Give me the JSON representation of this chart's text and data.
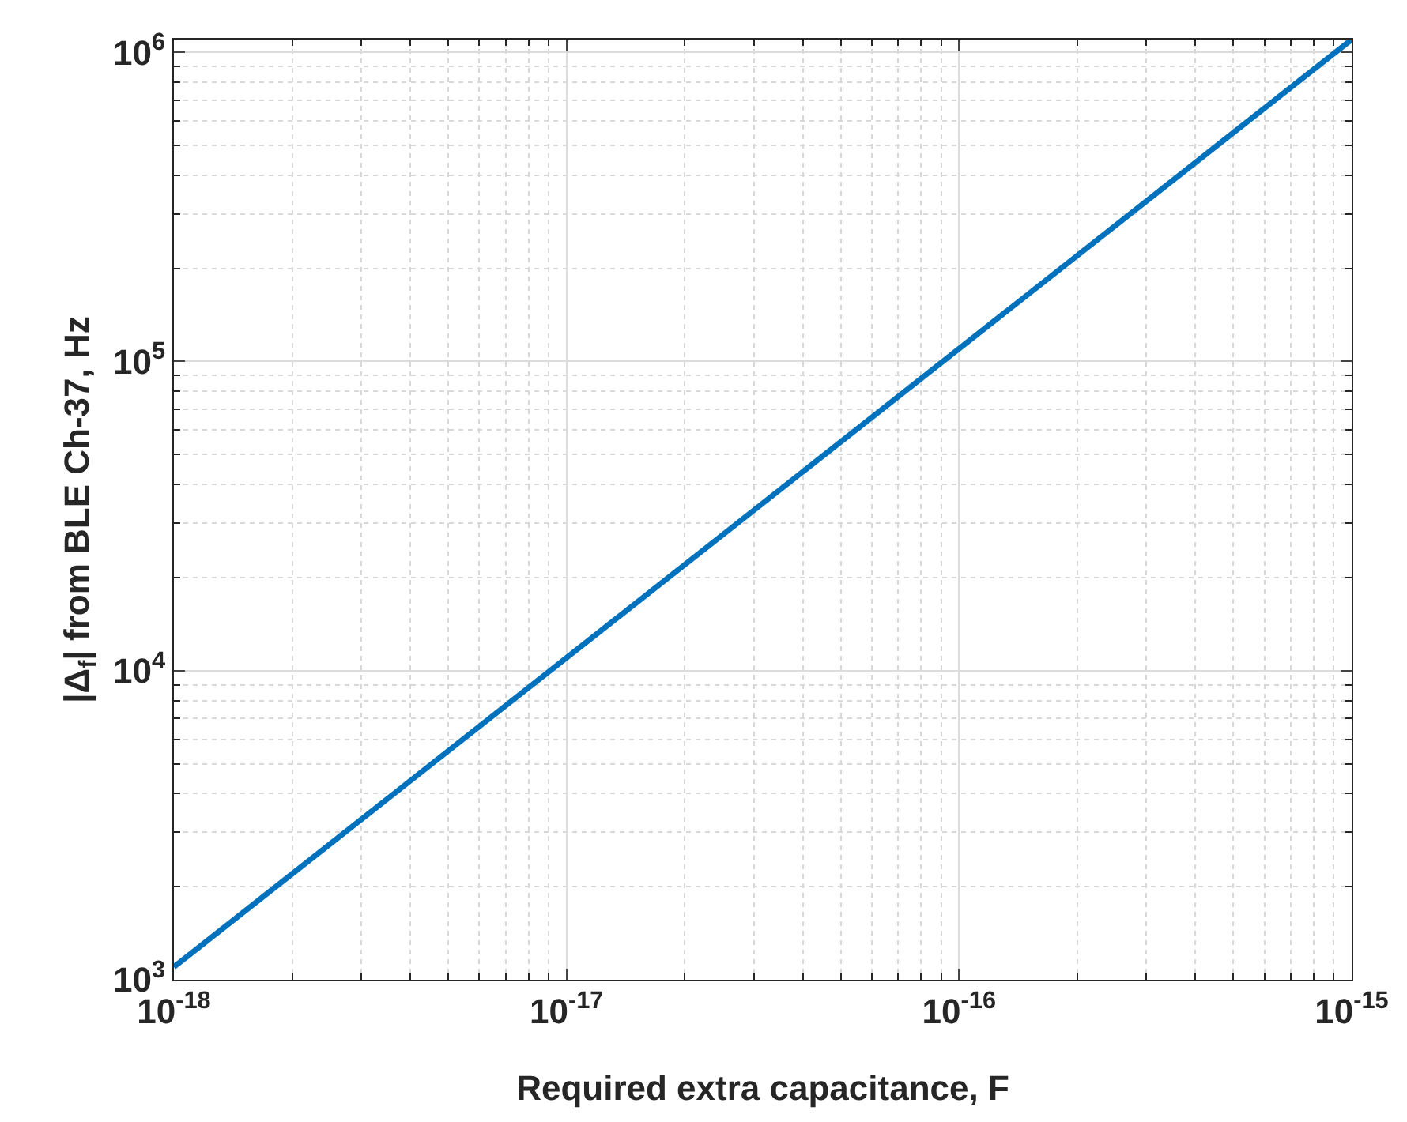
{
  "chart_data": {
    "type": "line",
    "xlabel": "Required extra capacitance, F",
    "ylabel": "|Δ$_{f}$| from BLE Ch-37, Hz",
    "x": [
      1e-18,
      1e-17,
      1e-16,
      1e-15
    ],
    "series": [
      {
        "color": "#0072bd",
        "values": [
          1100,
          11000,
          110000,
          1100000
        ]
      }
    ],
    "xlim": [
      1e-18,
      1e-15
    ],
    "ylim": [
      1000,
      1100000
    ],
    "xticks": [
      {
        "value": 1e-18,
        "label": "10$^{-18}$"
      },
      {
        "value": 1e-17,
        "label": "10$^{-17}$"
      },
      {
        "value": 1e-16,
        "label": "10$^{-16}$"
      },
      {
        "value": 1e-15,
        "label": "10$^{-15}$"
      }
    ],
    "yticks": [
      {
        "value": 1000,
        "label": "10$^{3}$"
      },
      {
        "value": 10000,
        "label": "10$^{4}$"
      },
      {
        "value": 100000,
        "label": "10$^{5}$"
      },
      {
        "value": 1000000,
        "label": "10$^{6}$"
      }
    ],
    "log": "xy",
    "grid": true,
    "line_style": "solid",
    "marker": "none"
  }
}
